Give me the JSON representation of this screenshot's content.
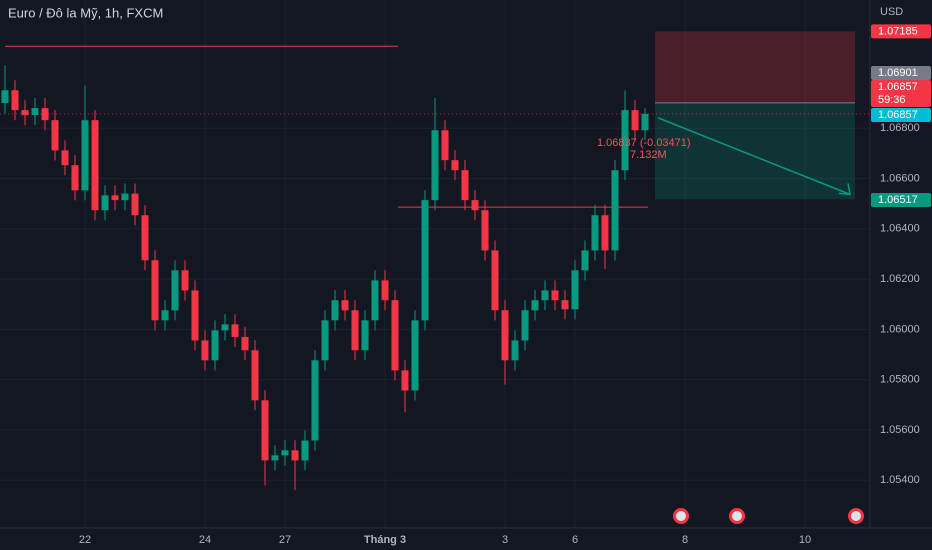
{
  "chart_data": {
    "type": "candlestick",
    "title": "Euro / Đô la Mỹ, 1h, FXCM",
    "currency": "USD",
    "up_color": "#089981",
    "down_color": "#f23645",
    "grid": true,
    "xlim": [
      -0.5,
      86.5
    ],
    "ylim": [
      1.0521,
      1.0731
    ],
    "yticks": [
      {
        "value": 1.054,
        "label": "1.05400"
      },
      {
        "value": 1.056,
        "label": "1.05600"
      },
      {
        "value": 1.058,
        "label": "1.05800"
      },
      {
        "value": 1.06,
        "label": "1.06000"
      },
      {
        "value": 1.062,
        "label": "1.06200"
      },
      {
        "value": 1.064,
        "label": "1.06400"
      },
      {
        "value": 1.066,
        "label": "1.06600"
      },
      {
        "value": 1.068,
        "label": "1.06800"
      }
    ],
    "xticks": [
      {
        "value": 8,
        "label": "22"
      },
      {
        "value": 20,
        "label": "24"
      },
      {
        "value": 28,
        "label": "27"
      },
      {
        "value": 38,
        "label": "Tháng 3"
      },
      {
        "value": 50,
        "label": "3"
      },
      {
        "value": 57,
        "label": "6"
      },
      {
        "value": 68,
        "label": "8"
      },
      {
        "value": 80,
        "label": "10"
      }
    ],
    "open": [
      1.069,
      1.06951,
      1.06872,
      1.06852,
      1.0688,
      1.06832,
      1.06712,
      1.06653,
      1.06553,
      1.06832,
      1.06474,
      1.06533,
      1.06514,
      1.0654,
      1.06454,
      1.06275,
      1.06036,
      1.06076,
      1.06235,
      1.06155,
      1.05956,
      1.05877,
      1.05996,
      1.0602,
      1.0597,
      1.05917,
      1.05718,
      1.05479,
      1.05499,
      1.05519,
      1.05479,
      1.05558,
      1.05877,
      1.06036,
      1.06116,
      1.06076,
      1.05917,
      1.06036,
      1.06195,
      1.06116,
      1.05837,
      1.05757,
      1.06036,
      1.06514,
      1.06792,
      1.06673,
      1.06633,
      1.06514,
      1.06474,
      1.06314,
      1.06076,
      1.05877,
      1.05956,
      1.06076,
      1.06116,
      1.06155,
      1.06116,
      1.0608,
      1.06235,
      1.06314,
      1.06454,
      1.06314,
      1.06633,
      1.06872,
      1.06792
    ],
    "high": [
      1.0705,
      1.06991,
      1.06912,
      1.0692,
      1.0692,
      1.06872,
      1.06752,
      1.06693,
      1.0697,
      1.06872,
      1.06573,
      1.06573,
      1.0658,
      1.0658,
      1.06494,
      1.06315,
      1.06116,
      1.06275,
      1.06275,
      1.06195,
      1.05996,
      1.06036,
      1.0606,
      1.0606,
      1.0601,
      1.05957,
      1.05758,
      1.05539,
      1.05559,
      1.05559,
      1.05598,
      1.05917,
      1.06076,
      1.06156,
      1.06156,
      1.06116,
      1.06076,
      1.06235,
      1.06235,
      1.06156,
      1.05877,
      1.06076,
      1.06554,
      1.0692,
      1.06832,
      1.06713,
      1.06673,
      1.06554,
      1.06514,
      1.06354,
      1.06116,
      1.05996,
      1.06116,
      1.06156,
      1.06195,
      1.06195,
      1.06156,
      1.06275,
      1.06354,
      1.06494,
      1.06494,
      1.06673,
      1.0695,
      1.06912,
      1.0688
    ],
    "low": [
      1.0686,
      1.06832,
      1.06812,
      1.06812,
      1.06792,
      1.06672,
      1.06613,
      1.06513,
      1.06513,
      1.06434,
      1.06434,
      1.06474,
      1.06474,
      1.06414,
      1.06235,
      1.05996,
      1.05996,
      1.06036,
      1.06115,
      1.05916,
      1.05837,
      1.05837,
      1.05956,
      1.0593,
      1.05877,
      1.05678,
      1.0538,
      1.05439,
      1.05459,
      1.0536,
      1.05439,
      1.05518,
      1.05837,
      1.05996,
      1.06036,
      1.05877,
      1.05877,
      1.05996,
      1.06076,
      1.05797,
      1.0567,
      1.05717,
      1.05996,
      1.06474,
      1.06633,
      1.06593,
      1.06474,
      1.06434,
      1.06274,
      1.06036,
      1.0578,
      1.05837,
      1.05916,
      1.06036,
      1.06076,
      1.06076,
      1.0604,
      1.0604,
      1.06195,
      1.06274,
      1.0624,
      1.06274,
      1.06593,
      1.06752,
      1.06752
    ],
    "close": [
      1.06951,
      1.06872,
      1.06852,
      1.0688,
      1.06832,
      1.06712,
      1.06653,
      1.06553,
      1.06832,
      1.06474,
      1.06533,
      1.06514,
      1.0654,
      1.06454,
      1.06275,
      1.06036,
      1.06076,
      1.06235,
      1.06155,
      1.05956,
      1.05877,
      1.05996,
      1.0602,
      1.0597,
      1.05917,
      1.05718,
      1.05479,
      1.05499,
      1.05519,
      1.05479,
      1.05558,
      1.05877,
      1.06036,
      1.06116,
      1.06076,
      1.05917,
      1.06036,
      1.06195,
      1.06116,
      1.05837,
      1.05757,
      1.06036,
      1.06514,
      1.06792,
      1.06673,
      1.06633,
      1.06514,
      1.06474,
      1.06314,
      1.06076,
      1.05877,
      1.05956,
      1.06076,
      1.06116,
      1.06155,
      1.06116,
      1.0608,
      1.06235,
      1.06314,
      1.06454,
      1.06314,
      1.06633,
      1.06872,
      1.06792,
      1.06857
    ],
    "levels": [
      {
        "value": 1.07126,
        "from": 0,
        "to": 39.3,
        "color": "#f23645"
      },
      {
        "value": 1.06486,
        "from": 39.3,
        "to": 64.3,
        "color": "#f23645"
      }
    ],
    "position": {
      "stop": 1.07185,
      "entry": 1.06901,
      "target": 1.06517,
      "from": 65,
      "to": 85
    },
    "price_labels": [
      {
        "value": 1.07185,
        "color": "#f23645"
      },
      {
        "value": 1.06901,
        "color": "#787b86"
      },
      {
        "value": 1.06857,
        "color": "#f23645",
        "countdown": "59:36"
      },
      {
        "value": 1.06857,
        "color": "#00bcd4"
      },
      {
        "value": 1.06517,
        "color": "#089981"
      }
    ],
    "annotations": [
      "1.06837 (-0.03471)",
      "7.132M"
    ]
  }
}
